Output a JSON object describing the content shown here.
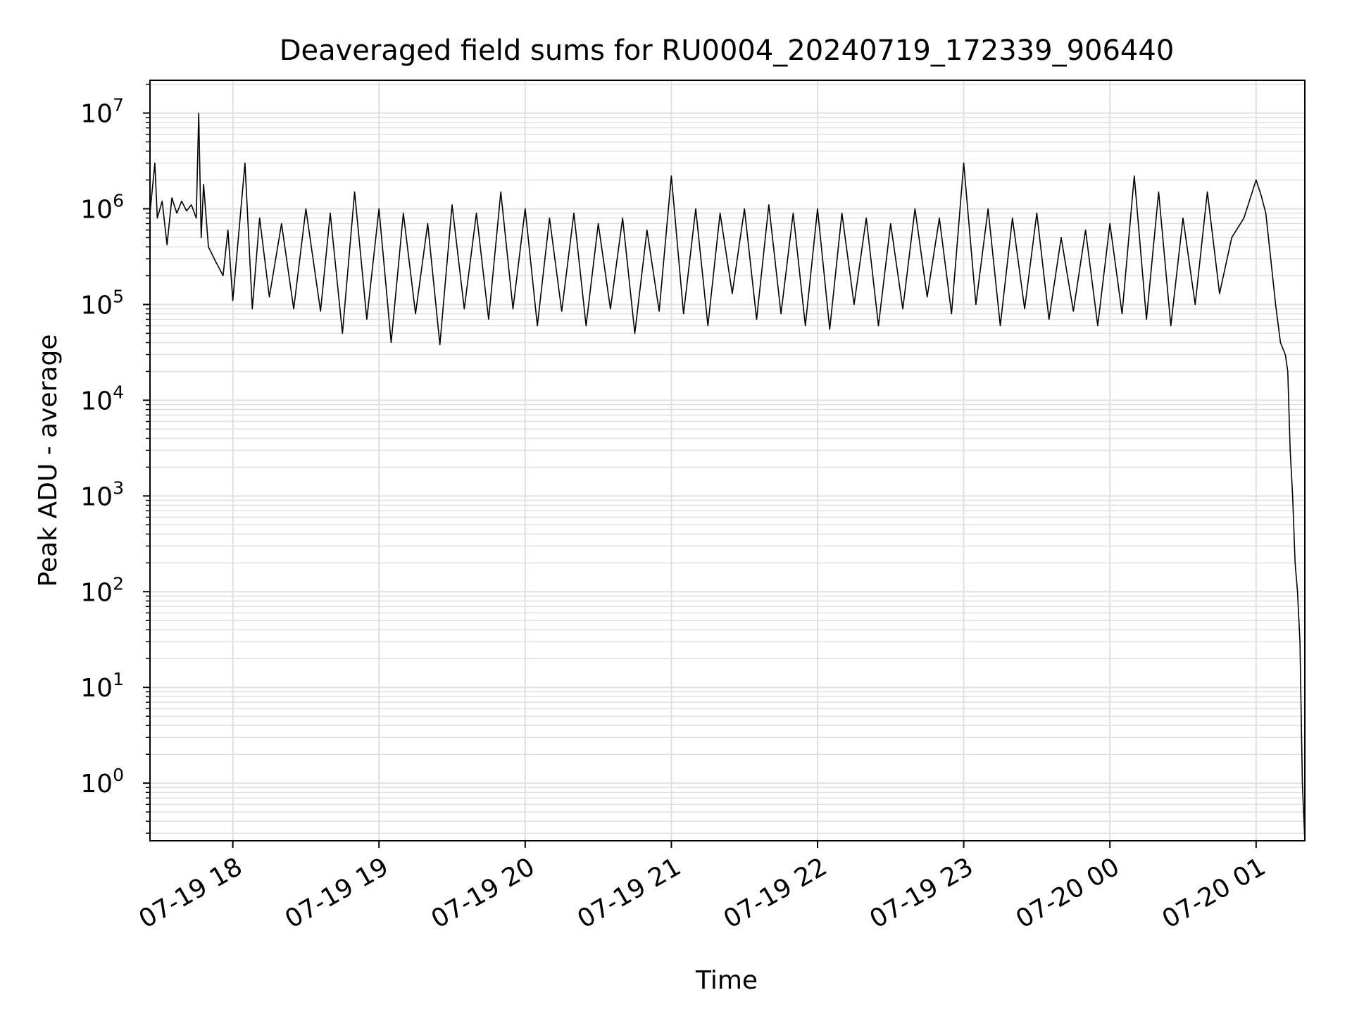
{
  "chart_data": {
    "type": "line",
    "title": "Deaveraged field sums for RU0004_20240719_172339_906440",
    "xlabel": "Time",
    "ylabel": "Peak ADU - average",
    "yscale": "log",
    "ylim": [
      0.25,
      22000000
    ],
    "xlim": [
      "2024-07-19 17:26",
      "2024-07-20 01:20"
    ],
    "grid": true,
    "legend": "none",
    "line_color": "#000000",
    "grid_color": "#e0e0e0",
    "x_ticks": [
      {
        "time": "2024-07-19 18:00",
        "label": "07-19 18"
      },
      {
        "time": "2024-07-19 19:00",
        "label": "07-19 19"
      },
      {
        "time": "2024-07-19 20:00",
        "label": "07-19 20"
      },
      {
        "time": "2024-07-19 21:00",
        "label": "07-19 21"
      },
      {
        "time": "2024-07-19 22:00",
        "label": "07-19 22"
      },
      {
        "time": "2024-07-19 23:00",
        "label": "07-19 23"
      },
      {
        "time": "2024-07-20 00:00",
        "label": "07-20 00"
      },
      {
        "time": "2024-07-20 01:00",
        "label": "07-20 01"
      }
    ],
    "y_ticks": [
      {
        "value": 1,
        "base": "10",
        "exp": "0"
      },
      {
        "value": 10,
        "base": "10",
        "exp": "1"
      },
      {
        "value": 100,
        "base": "10",
        "exp": "2"
      },
      {
        "value": 1000,
        "base": "10",
        "exp": "3"
      },
      {
        "value": 10000,
        "base": "10",
        "exp": "4"
      },
      {
        "value": 100000,
        "base": "10",
        "exp": "5"
      },
      {
        "value": 1000000,
        "base": "10",
        "exp": "6"
      },
      {
        "value": 10000000,
        "base": "10",
        "exp": "7"
      }
    ],
    "series": [
      {
        "x": [
          "2024-07-19 17:26",
          "2024-07-19 17:28",
          "2024-07-19 17:29",
          "2024-07-19 17:31",
          "2024-07-19 17:33",
          "2024-07-19 17:35",
          "2024-07-19 17:37",
          "2024-07-19 17:39",
          "2024-07-19 17:41",
          "2024-07-19 17:43",
          "2024-07-19 17:45",
          "2024-07-19 17:46",
          "2024-07-19 17:47",
          "2024-07-19 17:48",
          "2024-07-19 17:50",
          "2024-07-19 17:53",
          "2024-07-19 17:56",
          "2024-07-19 17:58",
          "2024-07-19 18:00",
          "2024-07-19 18:05",
          "2024-07-19 18:08",
          "2024-07-19 18:11",
          "2024-07-19 18:15",
          "2024-07-19 18:20",
          "2024-07-19 18:25",
          "2024-07-19 18:30",
          "2024-07-19 18:36",
          "2024-07-19 18:40",
          "2024-07-19 18:45",
          "2024-07-19 18:50",
          "2024-07-19 18:55",
          "2024-07-19 19:00",
          "2024-07-19 19:05",
          "2024-07-19 19:10",
          "2024-07-19 19:15",
          "2024-07-19 19:20",
          "2024-07-19 19:25",
          "2024-07-19 19:30",
          "2024-07-19 19:35",
          "2024-07-19 19:40",
          "2024-07-19 19:45",
          "2024-07-19 19:50",
          "2024-07-19 19:55",
          "2024-07-19 20:00",
          "2024-07-19 20:05",
          "2024-07-19 20:10",
          "2024-07-19 20:15",
          "2024-07-19 20:20",
          "2024-07-19 20:25",
          "2024-07-19 20:30",
          "2024-07-19 20:35",
          "2024-07-19 20:40",
          "2024-07-19 20:45",
          "2024-07-19 20:50",
          "2024-07-19 20:55",
          "2024-07-19 21:00",
          "2024-07-19 21:05",
          "2024-07-19 21:10",
          "2024-07-19 21:15",
          "2024-07-19 21:20",
          "2024-07-19 21:25",
          "2024-07-19 21:30",
          "2024-07-19 21:35",
          "2024-07-19 21:40",
          "2024-07-19 21:45",
          "2024-07-19 21:50",
          "2024-07-19 21:55",
          "2024-07-19 22:00",
          "2024-07-19 22:05",
          "2024-07-19 22:10",
          "2024-07-19 22:15",
          "2024-07-19 22:20",
          "2024-07-19 22:25",
          "2024-07-19 22:30",
          "2024-07-19 22:35",
          "2024-07-19 22:40",
          "2024-07-19 22:45",
          "2024-07-19 22:50",
          "2024-07-19 22:55",
          "2024-07-19 23:00",
          "2024-07-19 23:05",
          "2024-07-19 23:10",
          "2024-07-19 23:15",
          "2024-07-19 23:20",
          "2024-07-19 23:25",
          "2024-07-19 23:30",
          "2024-07-19 23:35",
          "2024-07-19 23:40",
          "2024-07-19 23:45",
          "2024-07-19 23:50",
          "2024-07-19 23:55",
          "2024-07-20 00:00",
          "2024-07-20 00:05",
          "2024-07-20 00:10",
          "2024-07-20 00:15",
          "2024-07-20 00:20",
          "2024-07-20 00:25",
          "2024-07-20 00:30",
          "2024-07-20 00:35",
          "2024-07-20 00:40",
          "2024-07-20 00:45",
          "2024-07-20 00:50",
          "2024-07-20 00:55",
          "2024-07-20 01:00",
          "2024-07-20 01:02",
          "2024-07-20 01:04",
          "2024-07-20 01:06",
          "2024-07-20 01:08",
          "2024-07-20 01:10",
          "2024-07-20 01:12",
          "2024-07-20 01:13",
          "2024-07-20 01:14",
          "2024-07-20 01:15",
          "2024-07-20 01:16",
          "2024-07-20 01:17",
          "2024-07-20 01:18",
          "2024-07-20 01:19",
          "2024-07-20 01:20"
        ],
        "y": [
          900000,
          3000000,
          800000,
          1200000,
          420000,
          1300000,
          900000,
          1200000,
          950000,
          1100000,
          800000,
          10000000,
          500000,
          1800000,
          400000,
          280000,
          200000,
          600000,
          110000,
          3000000,
          90000,
          800000,
          120000,
          700000,
          90000,
          1000000,
          85000,
          900000,
          50000,
          1500000,
          70000,
          1000000,
          40000,
          900000,
          80000,
          700000,
          38000,
          1100000,
          90000,
          900000,
          70000,
          1500000,
          90000,
          1000000,
          60000,
          800000,
          85000,
          900000,
          60000,
          700000,
          90000,
          800000,
          50000,
          600000,
          85000,
          2200000,
          80000,
          1000000,
          60000,
          900000,
          130000,
          1000000,
          70000,
          1100000,
          80000,
          900000,
          60000,
          1000000,
          55000,
          900000,
          100000,
          800000,
          60000,
          700000,
          90000,
          1000000,
          120000,
          800000,
          80000,
          3000000,
          100000,
          1000000,
          60000,
          800000,
          90000,
          900000,
          70000,
          500000,
          85000,
          600000,
          60000,
          700000,
          80000,
          2200000,
          70000,
          1500000,
          60000,
          800000,
          100000,
          1500000,
          130000,
          500000,
          800000,
          2000000,
          1400000,
          900000,
          300000,
          100000,
          40000,
          30000,
          20000,
          3000,
          1000,
          200,
          100,
          30,
          1,
          0.25
        ]
      }
    ]
  }
}
